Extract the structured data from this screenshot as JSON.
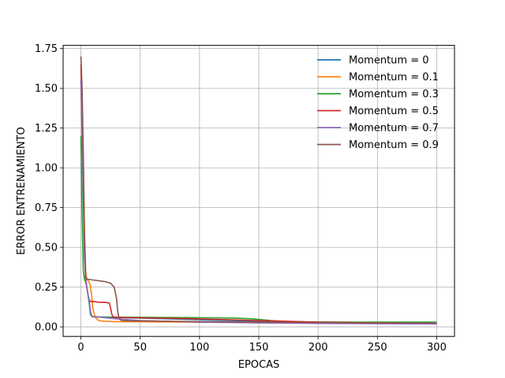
{
  "chart_data": {
    "type": "line",
    "title": "",
    "xlabel": "EPOCAS",
    "ylabel": "ERROR ENTRENAMIENTO",
    "xlim": [
      -15,
      315
    ],
    "ylim": [
      -0.06,
      1.77
    ],
    "xticks": [
      0,
      50,
      100,
      150,
      200,
      250,
      300
    ],
    "yticks": [
      0.0,
      0.25,
      0.5,
      0.75,
      1.0,
      1.25,
      1.5,
      1.75
    ],
    "ytick_labels": [
      "0.00",
      "0.25",
      "0.50",
      "0.75",
      "1.00",
      "1.25",
      "1.50",
      "1.75"
    ],
    "grid": true,
    "legend_position": "top-right",
    "series": [
      {
        "name": "Momentum = 0",
        "color": "#1f77b4",
        "x": [
          0,
          1,
          2,
          3,
          4,
          5,
          6,
          7,
          8,
          9,
          10,
          15,
          20,
          30,
          50,
          100,
          150,
          200,
          250,
          300
        ],
        "y": [
          1.55,
          1.2,
          0.8,
          0.45,
          0.3,
          0.25,
          0.2,
          0.15,
          0.1,
          0.07,
          0.065,
          0.062,
          0.06,
          0.058,
          0.055,
          0.045,
          0.035,
          0.03,
          0.028,
          0.027
        ]
      },
      {
        "name": "Momentum = 0.1",
        "color": "#ff7f0e",
        "x": [
          0,
          1,
          2,
          3,
          4,
          5,
          6,
          7,
          8,
          9,
          10,
          12,
          15,
          20,
          30,
          50,
          100,
          150,
          200,
          250,
          300
        ],
        "y": [
          1.55,
          1.3,
          1.0,
          0.6,
          0.35,
          0.3,
          0.29,
          0.28,
          0.26,
          0.2,
          0.12,
          0.06,
          0.04,
          0.035,
          0.033,
          0.032,
          0.03,
          0.028,
          0.026,
          0.025,
          0.024
        ]
      },
      {
        "name": "Momentum = 0.3",
        "color": "#2ca02c",
        "x": [
          0,
          1,
          2,
          3,
          4,
          5,
          6,
          7,
          8,
          9,
          10,
          15,
          20,
          30,
          50,
          100,
          130,
          145,
          160,
          175,
          200,
          250,
          300
        ],
        "y": [
          1.2,
          0.7,
          0.35,
          0.3,
          0.28,
          0.25,
          0.2,
          0.15,
          0.08,
          0.065,
          0.063,
          0.062,
          0.062,
          0.061,
          0.06,
          0.058,
          0.055,
          0.05,
          0.04,
          0.033,
          0.03,
          0.03,
          0.03
        ]
      },
      {
        "name": "Momentum = 0.5",
        "color": "#d62728",
        "x": [
          0,
          1,
          2,
          3,
          4,
          5,
          6,
          7,
          8,
          10,
          15,
          20,
          24,
          25,
          26,
          27,
          28,
          30,
          40,
          50,
          100,
          150,
          200,
          250,
          300
        ],
        "y": [
          1.65,
          1.3,
          0.9,
          0.5,
          0.3,
          0.25,
          0.2,
          0.17,
          0.16,
          0.16,
          0.155,
          0.155,
          0.15,
          0.12,
          0.08,
          0.065,
          0.062,
          0.06,
          0.058,
          0.057,
          0.05,
          0.04,
          0.03,
          0.025,
          0.022
        ]
      },
      {
        "name": "Momentum = 0.7",
        "color": "#9467bd",
        "x": [
          0,
          1,
          2,
          3,
          4,
          5,
          6,
          7,
          8,
          9,
          10,
          15,
          20,
          30,
          50,
          100,
          150,
          200,
          250,
          300
        ],
        "y": [
          1.55,
          1.3,
          0.9,
          0.5,
          0.3,
          0.25,
          0.2,
          0.17,
          0.1,
          0.07,
          0.065,
          0.062,
          0.058,
          0.05,
          0.04,
          0.03,
          0.025,
          0.022,
          0.02,
          0.018
        ]
      },
      {
        "name": "Momentum = 0.9",
        "color": "#8c564b",
        "x": [
          0,
          1,
          2,
          3,
          4,
          5,
          10,
          15,
          20,
          25,
          28,
          30,
          31,
          32,
          33,
          35,
          40,
          50,
          100,
          150,
          200,
          250,
          300
        ],
        "y": [
          1.7,
          1.5,
          1.1,
          0.6,
          0.32,
          0.3,
          0.295,
          0.29,
          0.285,
          0.275,
          0.25,
          0.18,
          0.1,
          0.06,
          0.045,
          0.04,
          0.038,
          0.037,
          0.033,
          0.03,
          0.027,
          0.025,
          0.024
        ]
      }
    ]
  }
}
